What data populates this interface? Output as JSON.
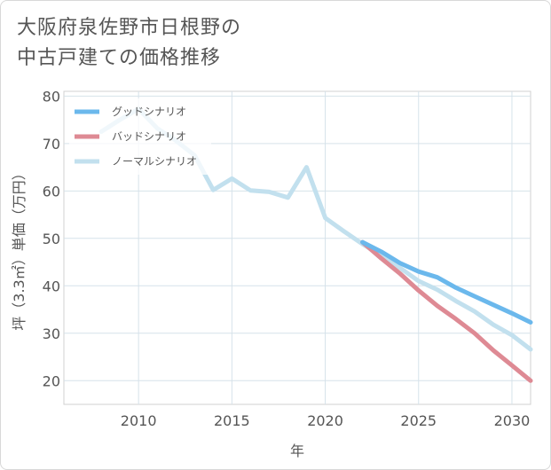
{
  "title": "大阪府泉佐野市日根野の\n中古戸建ての価格推移",
  "chart_data": {
    "type": "line",
    "xlabel": "年",
    "ylabel": "坪（3.3㎡）単価（万円）",
    "xlim": [
      2006,
      2031
    ],
    "ylim": [
      15,
      81
    ],
    "xticks": [
      2010,
      2015,
      2020,
      2025,
      2030
    ],
    "yticks": [
      20,
      30,
      40,
      50,
      60,
      70,
      80
    ],
    "grid": true,
    "legend_position": "top-left",
    "series": [
      {
        "name": "グッドシナリオ",
        "color": "#6bb8ec",
        "x": [
          2022,
          2023,
          2024,
          2025,
          2026,
          2027,
          2028,
          2029,
          2030,
          2031
        ],
        "y": [
          49.2,
          47.2,
          44.8,
          43.0,
          41.8,
          39.6,
          37.8,
          36.0,
          34.2,
          32.3
        ]
      },
      {
        "name": "バッドシナリオ",
        "color": "#de8a94",
        "x": [
          2022,
          2023,
          2024,
          2025,
          2026,
          2027,
          2028,
          2029,
          2030,
          2031
        ],
        "y": [
          49.2,
          45.8,
          42.6,
          39.0,
          35.8,
          33.0,
          30.0,
          26.4,
          23.2,
          20.0
        ]
      },
      {
        "name": "ノーマルシナリオ",
        "color": "#c2e0ee",
        "x": [
          2008,
          2009,
          2010,
          2011,
          2012,
          2013,
          2014,
          2015,
          2016,
          2017,
          2018,
          2019,
          2020,
          2021,
          2022,
          2023,
          2024,
          2025,
          2026,
          2027,
          2028,
          2029,
          2030,
          2031
        ],
        "y": [
          72.5,
          75.0,
          77.3,
          73.2,
          70.6,
          67.5,
          60.2,
          62.6,
          60.1,
          59.8,
          58.6,
          65.0,
          54.3,
          51.5,
          48.8,
          46.4,
          43.8,
          41.0,
          39.2,
          36.8,
          34.6,
          31.8,
          29.6,
          26.6
        ]
      }
    ]
  }
}
